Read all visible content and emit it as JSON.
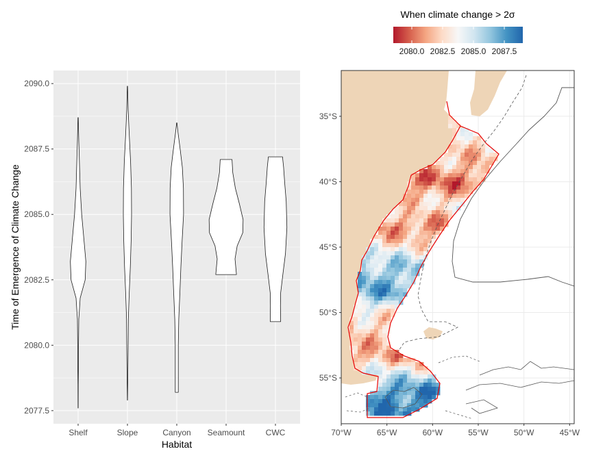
{
  "chart_data": [
    {
      "type": "violin",
      "xlabel": "Habitat",
      "ylabel": "Time of Emergence of Climate Change",
      "ylim": [
        2077.0,
        2090.5
      ],
      "yticks": [
        "2077.5",
        "2080.0",
        "2082.5",
        "2085.0",
        "2087.5",
        "2090.0"
      ],
      "categories": [
        "Shelf",
        "Slope",
        "Canyon",
        "Seamount",
        "CWC"
      ],
      "series": [
        {
          "category": "Shelf",
          "profile": [
            [
              2077.6,
              0.1
            ],
            [
              2078.5,
              0.15
            ],
            [
              2079.0,
              0.4
            ],
            [
              2080.0,
              0.6
            ],
            [
              2081.0,
              0.9
            ],
            [
              2081.8,
              2.8
            ],
            [
              2082.5,
              9.5
            ],
            [
              2083.2,
              10.5
            ],
            [
              2084.0,
              8.0
            ],
            [
              2085.0,
              4.8
            ],
            [
              2086.0,
              2.8
            ],
            [
              2087.0,
              1.8
            ],
            [
              2087.8,
              0.9
            ],
            [
              2088.7,
              0.2
            ]
          ]
        },
        {
          "category": "Slope",
          "profile": [
            [
              2077.9,
              0.1
            ],
            [
              2079.0,
              0.6
            ],
            [
              2080.0,
              0.9
            ],
            [
              2081.0,
              1.2
            ],
            [
              2082.0,
              2.4
            ],
            [
              2083.0,
              3.9
            ],
            [
              2084.0,
              5.0
            ],
            [
              2085.0,
              5.6
            ],
            [
              2086.0,
              5.4
            ],
            [
              2087.0,
              4.3
            ],
            [
              2088.0,
              2.5
            ],
            [
              2089.0,
              0.9
            ],
            [
              2089.9,
              0.2
            ]
          ]
        },
        {
          "category": "Canyon",
          "profile": [
            [
              2078.2,
              2.0
            ],
            [
              2080.0,
              2.0
            ],
            [
              2081.0,
              2.7
            ],
            [
              2082.0,
              4.2
            ],
            [
              2083.0,
              5.6
            ],
            [
              2084.0,
              7.2
            ],
            [
              2085.0,
              9.2
            ],
            [
              2086.0,
              9.0
            ],
            [
              2086.8,
              7.5
            ],
            [
              2087.5,
              4.5
            ],
            [
              2088.1,
              1.8
            ],
            [
              2088.5,
              0.2
            ]
          ]
        },
        {
          "category": "Seamount",
          "profile": [
            [
              2082.7,
              14.0
            ],
            [
              2083.3,
              12.0
            ],
            [
              2083.8,
              15.0
            ],
            [
              2084.3,
              22.5
            ],
            [
              2084.8,
              23.0
            ],
            [
              2085.4,
              18.0
            ],
            [
              2086.0,
              12.5
            ],
            [
              2086.6,
              9.0
            ],
            [
              2087.1,
              8.0
            ]
          ]
        },
        {
          "category": "CWC",
          "profile": [
            [
              2080.9,
              7.0
            ],
            [
              2081.5,
              6.8
            ],
            [
              2082.0,
              7.0
            ],
            [
              2082.7,
              10.0
            ],
            [
              2083.5,
              13.5
            ],
            [
              2084.5,
              15.5
            ],
            [
              2085.5,
              14.5
            ],
            [
              2086.2,
              12.5
            ],
            [
              2086.8,
              11.0
            ],
            [
              2087.2,
              9.5
            ]
          ]
        }
      ]
    },
    {
      "type": "heatmap",
      "colorbar_title": "When climate change > 2σ",
      "colorbar_range": [
        2078.5,
        2089.0
      ],
      "colorbar_ticks": [
        "2080.0",
        "2082.5",
        "2085.0",
        "2087.5"
      ],
      "xticks": [
        "70°W",
        "65°W",
        "60°W",
        "55°W",
        "50°W",
        "45°W"
      ],
      "yticks": [
        "35°S",
        "40°S",
        "45°S",
        "50°S",
        "55°S"
      ],
      "xlim": [
        -70,
        -44.5
      ],
      "ylim": [
        -58.5,
        -31.5
      ],
      "colors": {
        "scale": [
          "#b2182b",
          "#d6604d",
          "#f4a582",
          "#fddbc7",
          "#f7f7f7",
          "#d1e5f0",
          "#92c5de",
          "#4393c3",
          "#2166ac"
        ],
        "land": "#eed5b7",
        "boundary": "#e60000",
        "contour": "#555555"
      },
      "region_toe": [
        {
          "lat": -36.0,
          "value": 2082.8
        },
        {
          "lat": -38.5,
          "value": 2082.0
        },
        {
          "lat": -40.0,
          "value": 2080.2
        },
        {
          "lat": -42.0,
          "value": 2083.0
        },
        {
          "lat": -43.5,
          "value": 2080.6
        },
        {
          "lat": -46.5,
          "value": 2086.0
        },
        {
          "lat": -48.5,
          "value": 2087.0
        },
        {
          "lat": -50.5,
          "value": 2082.5
        },
        {
          "lat": -53.5,
          "value": 2081.5
        },
        {
          "lat": -56.0,
          "value": 2087.8
        }
      ]
    }
  ]
}
